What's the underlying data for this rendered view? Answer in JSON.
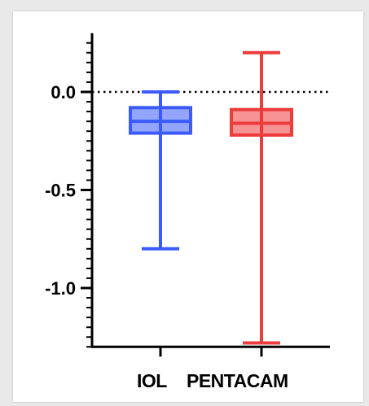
{
  "chart_data": {
    "type": "box",
    "title": "",
    "xlabel": "",
    "ylabel": "",
    "ylim": [
      -1.3,
      0.3
    ],
    "yticks": [
      0.0,
      -0.5,
      -1.0
    ],
    "ytick_labels": [
      "0.0",
      "-0.5",
      "-1.0"
    ],
    "reference_line": {
      "y": 0.0,
      "style": "dotted"
    },
    "categories": [
      "IOL",
      "PENTACAM"
    ],
    "series": [
      {
        "category": "IOL",
        "min": -0.8,
        "q1": -0.21,
        "median": -0.15,
        "q3": -0.08,
        "max": 0.0,
        "color": "#3b5bff"
      },
      {
        "category": "PENTACAM",
        "min": -1.28,
        "q1": -0.22,
        "median": -0.16,
        "q3": -0.09,
        "max": 0.2,
        "color": "#ee3b3b"
      }
    ]
  }
}
